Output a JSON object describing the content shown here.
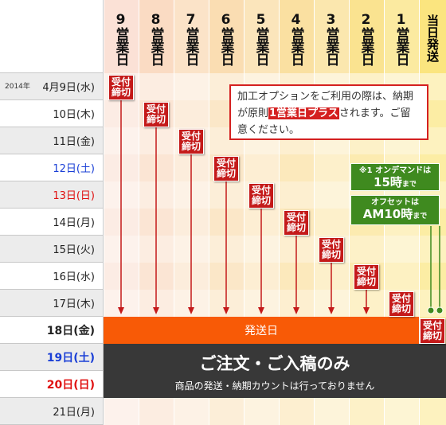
{
  "header": {
    "columns": [
      "9営業日",
      "8営業日",
      "7営業日",
      "6営業日",
      "5営業日",
      "4営業日",
      "3営業日",
      "2営業日",
      "1営業日"
    ],
    "same_day": [
      "当日",
      "発送"
    ]
  },
  "rows": [
    {
      "year": "2014年",
      "date": "4月9日(水)"
    },
    {
      "date": "10日(木)"
    },
    {
      "date": "11日(金)"
    },
    {
      "date": "12日(土)",
      "color": "#1a3fd6"
    },
    {
      "date": "13日(日)",
      "color": "#e01010"
    },
    {
      "date": "14日(月)"
    },
    {
      "date": "15日(火)"
    },
    {
      "date": "16日(水)"
    },
    {
      "date": "17日(木)"
    },
    {
      "date": "18日(金)",
      "bold": true
    },
    {
      "date": "19日(土)",
      "color": "#1a3fd6",
      "bold": true
    },
    {
      "date": "20日(日)",
      "color": "#e01010",
      "bold": true
    },
    {
      "date": "21日(月)"
    }
  ],
  "badge": "受付締切",
  "notice": [
    "加工オプションをご利用の際は、納期が原則",
    "1営業日プラス",
    "されます。ご留意ください。"
  ],
  "green_notes": [
    {
      "prefix": "※1 オンデマンドは",
      "emphasis": "15時",
      "suffix": "まで"
    },
    {
      "prefix": "オフセットは",
      "emphasis": "AM10時",
      "suffix": "まで"
    }
  ],
  "shipping_bar": "発送日",
  "closed_bar": {
    "title": "ご注文・ご入稿のみ",
    "note": "商品の発送・納期カウントは行っておりません"
  }
}
